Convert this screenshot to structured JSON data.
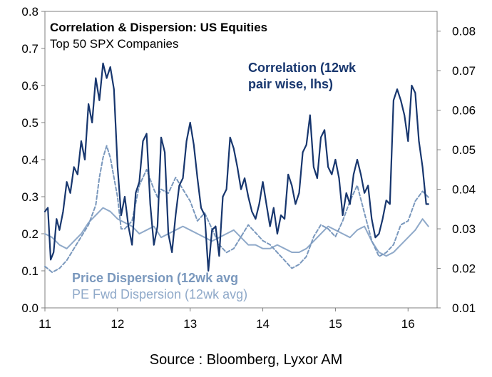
{
  "chart_data": {
    "type": "line",
    "title": "Correlation & Dispersion: US Equities",
    "subtitle": "Top 50 SPX Companies",
    "source": "Source : Bloomberg, Lyxor AM",
    "x_ticks": [
      "11",
      "12",
      "13",
      "14",
      "15",
      "16"
    ],
    "xlim": [
      11,
      16.4
    ],
    "y_left_ticks": [
      "0.0",
      "0.1",
      "0.2",
      "0.3",
      "0.4",
      "0.5",
      "0.6",
      "0.7",
      "0.8"
    ],
    "ylim_left": [
      0,
      0.8
    ],
    "y_right_ticks": [
      "0.01",
      "0.02",
      "0.03",
      "0.04",
      "0.05",
      "0.06",
      "0.07",
      "0.08"
    ],
    "ylim_right": [
      0.01,
      0.085
    ],
    "grid": false,
    "series": [
      {
        "name": "Correlation (12wk pair wise, lhs)",
        "label_lines": [
          "Correlation (12wk",
          "pair wise, lhs)"
        ],
        "axis": "left",
        "color": "#17366e",
        "style": "solid",
        "x": [
          11.0,
          11.04,
          11.08,
          11.12,
          11.16,
          11.2,
          11.25,
          11.3,
          11.35,
          11.4,
          11.45,
          11.5,
          11.55,
          11.6,
          11.65,
          11.7,
          11.75,
          11.8,
          11.85,
          11.9,
          11.95,
          12.0,
          12.05,
          12.1,
          12.15,
          12.2,
          12.25,
          12.3,
          12.35,
          12.4,
          12.45,
          12.5,
          12.55,
          12.6,
          12.65,
          12.7,
          12.75,
          12.8,
          12.85,
          12.9,
          12.95,
          13.0,
          13.05,
          13.1,
          13.15,
          13.2,
          13.25,
          13.3,
          13.35,
          13.4,
          13.45,
          13.5,
          13.55,
          13.6,
          13.65,
          13.7,
          13.75,
          13.8,
          13.85,
          13.9,
          13.95,
          14.0,
          14.05,
          14.1,
          14.15,
          14.2,
          14.25,
          14.3,
          14.35,
          14.4,
          14.45,
          14.5,
          14.55,
          14.6,
          14.65,
          14.7,
          14.75,
          14.8,
          14.85,
          14.9,
          14.95,
          15.0,
          15.05,
          15.1,
          15.15,
          15.2,
          15.25,
          15.3,
          15.35,
          15.4,
          15.45,
          15.5,
          15.55,
          15.6,
          15.65,
          15.7,
          15.75,
          15.8,
          15.85,
          15.9,
          15.95,
          16.0,
          16.05,
          16.1,
          16.15,
          16.2,
          16.25,
          16.28
        ],
        "values": [
          0.26,
          0.27,
          0.13,
          0.15,
          0.24,
          0.21,
          0.26,
          0.34,
          0.31,
          0.38,
          0.36,
          0.45,
          0.4,
          0.55,
          0.5,
          0.62,
          0.56,
          0.66,
          0.62,
          0.65,
          0.59,
          0.38,
          0.25,
          0.3,
          0.22,
          0.17,
          0.31,
          0.34,
          0.45,
          0.47,
          0.28,
          0.17,
          0.22,
          0.46,
          0.42,
          0.2,
          0.15,
          0.25,
          0.33,
          0.35,
          0.45,
          0.5,
          0.44,
          0.35,
          0.27,
          0.25,
          0.1,
          0.21,
          0.22,
          0.14,
          0.3,
          0.32,
          0.46,
          0.43,
          0.38,
          0.32,
          0.35,
          0.3,
          0.26,
          0.24,
          0.28,
          0.34,
          0.28,
          0.22,
          0.27,
          0.2,
          0.25,
          0.24,
          0.36,
          0.33,
          0.28,
          0.31,
          0.42,
          0.44,
          0.52,
          0.38,
          0.35,
          0.46,
          0.48,
          0.38,
          0.36,
          0.4,
          0.35,
          0.25,
          0.31,
          0.28,
          0.36,
          0.4,
          0.36,
          0.31,
          0.33,
          0.24,
          0.19,
          0.2,
          0.24,
          0.29,
          0.28,
          0.56,
          0.59,
          0.56,
          0.52,
          0.45,
          0.6,
          0.58,
          0.45,
          0.38,
          0.28,
          0.28
        ]
      },
      {
        "name": "Price Dispersion (12wk avg",
        "axis": "right",
        "color": "#7a98bd",
        "style": "dashed",
        "x": [
          11.0,
          11.1,
          11.2,
          11.3,
          11.4,
          11.5,
          11.6,
          11.7,
          11.75,
          11.8,
          11.85,
          11.9,
          11.95,
          12.0,
          12.05,
          12.1,
          12.2,
          12.3,
          12.4,
          12.5,
          12.55,
          12.6,
          12.7,
          12.8,
          12.9,
          13.0,
          13.1,
          13.2,
          13.3,
          13.4,
          13.5,
          13.6,
          13.7,
          13.8,
          13.9,
          14.0,
          14.1,
          14.2,
          14.3,
          14.4,
          14.5,
          14.6,
          14.7,
          14.8,
          14.9,
          15.0,
          15.1,
          15.2,
          15.3,
          15.4,
          15.5,
          15.6,
          15.7,
          15.8,
          15.9,
          16.0,
          16.1,
          16.2,
          16.28
        ],
        "values": [
          0.0205,
          0.019,
          0.02,
          0.022,
          0.025,
          0.028,
          0.031,
          0.036,
          0.043,
          0.048,
          0.051,
          0.048,
          0.043,
          0.038,
          0.03,
          0.03,
          0.032,
          0.041,
          0.045,
          0.04,
          0.038,
          0.04,
          0.039,
          0.043,
          0.04,
          0.037,
          0.032,
          0.034,
          0.03,
          0.026,
          0.024,
          0.025,
          0.028,
          0.031,
          0.029,
          0.027,
          0.026,
          0.024,
          0.022,
          0.02,
          0.021,
          0.023,
          0.028,
          0.031,
          0.03,
          0.028,
          0.032,
          0.037,
          0.041,
          0.034,
          0.027,
          0.023,
          0.024,
          0.026,
          0.031,
          0.032,
          0.037,
          0.0395,
          0.038
        ]
      },
      {
        "name": "PE Fwd Dispersion (12wk avg)",
        "axis": "left",
        "color": "#8fa9c9",
        "style": "solid",
        "x": [
          11.0,
          11.1,
          11.2,
          11.3,
          11.4,
          11.5,
          11.6,
          11.7,
          11.8,
          11.9,
          12.0,
          12.1,
          12.2,
          12.3,
          12.4,
          12.5,
          12.6,
          12.7,
          12.8,
          12.9,
          13.0,
          13.1,
          13.2,
          13.3,
          13.4,
          13.5,
          13.6,
          13.7,
          13.8,
          13.9,
          14.0,
          14.1,
          14.2,
          14.3,
          14.4,
          14.5,
          14.6,
          14.7,
          14.8,
          14.9,
          15.0,
          15.1,
          15.2,
          15.3,
          15.4,
          15.5,
          15.6,
          15.7,
          15.8,
          15.9,
          16.0,
          16.1,
          16.2,
          16.28
        ],
        "values": [
          0.2,
          0.19,
          0.17,
          0.16,
          0.18,
          0.2,
          0.23,
          0.25,
          0.27,
          0.26,
          0.24,
          0.23,
          0.22,
          0.2,
          0.21,
          0.22,
          0.19,
          0.2,
          0.21,
          0.22,
          0.21,
          0.2,
          0.19,
          0.18,
          0.19,
          0.2,
          0.21,
          0.19,
          0.17,
          0.17,
          0.16,
          0.16,
          0.17,
          0.16,
          0.15,
          0.15,
          0.16,
          0.18,
          0.2,
          0.22,
          0.21,
          0.2,
          0.19,
          0.21,
          0.22,
          0.18,
          0.15,
          0.14,
          0.15,
          0.17,
          0.19,
          0.21,
          0.24,
          0.22
        ]
      }
    ]
  }
}
